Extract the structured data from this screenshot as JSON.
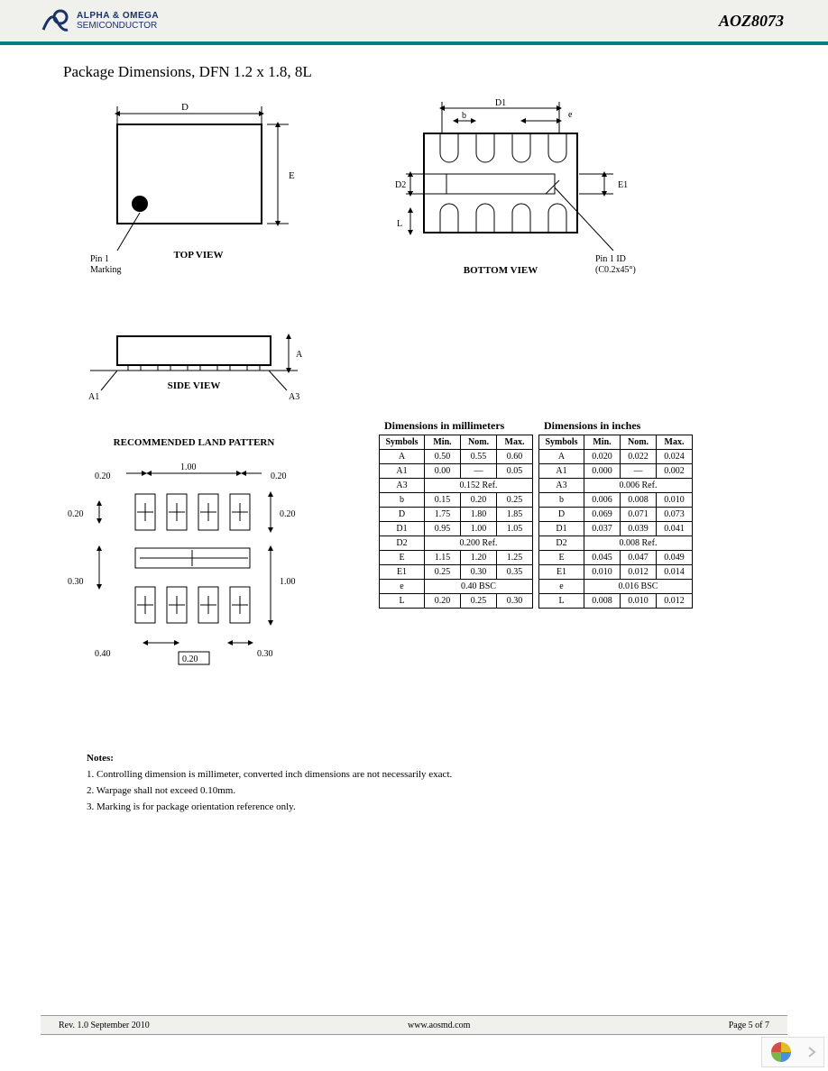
{
  "header": {
    "company_top": "ALPHA & OMEGA",
    "company_bottom": "SEMICONDUCTOR",
    "part_number": "AOZ8073"
  },
  "section_title": "Package Dimensions, DFN 1.2 x 1.8, 8L",
  "views": {
    "top": {
      "caption": "TOP VIEW",
      "pin1_label": "Pin 1\nMarking",
      "dim_D": "D",
      "dim_E": "E"
    },
    "bottom": {
      "caption": "BOTTOM VIEW",
      "dim_D1": "D1",
      "dim_b": "b",
      "dim_e": "e",
      "dim_D2": "D2",
      "dim_E1": "E1",
      "dim_L": "L",
      "pin1_label": "Pin 1 ID\n(C0.2x45°)"
    },
    "side": {
      "caption": "SIDE VIEW",
      "dim_A": "A",
      "dim_A1": "A1",
      "dim_A3": "A3"
    }
  },
  "land_pattern": {
    "title": "RECOMMENDED LAND PATTERN",
    "dims": {
      "top_0_20_l": "0.20",
      "top_1_00": "1.00",
      "top_0_20_r": "0.20",
      "left_0_20": "0.20",
      "right_0_20": "0.20",
      "left_0_30": "0.30",
      "right_1_00": "1.00",
      "bot_0_40": "0.40",
      "bot_0_20": "0.20",
      "bot_0_30": "0.30"
    }
  },
  "tables": {
    "mm": {
      "title": "Dimensions in millimeters",
      "headers": [
        "Symbols",
        "Min.",
        "Nom.",
        "Max."
      ],
      "rows": [
        {
          "sym": "A",
          "min": "0.50",
          "nom": "0.55",
          "max": "0.60"
        },
        {
          "sym": "A1",
          "min": "0.00",
          "nom": "—",
          "max": "0.05"
        },
        {
          "sym": "A3",
          "span": "0.152 Ref."
        },
        {
          "sym": "b",
          "min": "0.15",
          "nom": "0.20",
          "max": "0.25"
        },
        {
          "sym": "D",
          "min": "1.75",
          "nom": "1.80",
          "max": "1.85"
        },
        {
          "sym": "D1",
          "min": "0.95",
          "nom": "1.00",
          "max": "1.05"
        },
        {
          "sym": "D2",
          "span": "0.200 Ref."
        },
        {
          "sym": "E",
          "min": "1.15",
          "nom": "1.20",
          "max": "1.25"
        },
        {
          "sym": "E1",
          "min": "0.25",
          "nom": "0.30",
          "max": "0.35"
        },
        {
          "sym": "e",
          "span": "0.40 BSC"
        },
        {
          "sym": "L",
          "min": "0.20",
          "nom": "0.25",
          "max": "0.30"
        }
      ]
    },
    "in": {
      "title": "Dimensions in inches",
      "headers": [
        "Symbols",
        "Min.",
        "Nom.",
        "Max."
      ],
      "rows": [
        {
          "sym": "A",
          "min": "0.020",
          "nom": "0.022",
          "max": "0.024"
        },
        {
          "sym": "A1",
          "min": "0.000",
          "nom": "—",
          "max": "0.002"
        },
        {
          "sym": "A3",
          "span": "0.006 Ref."
        },
        {
          "sym": "b",
          "min": "0.006",
          "nom": "0.008",
          "max": "0.010"
        },
        {
          "sym": "D",
          "min": "0.069",
          "nom": "0.071",
          "max": "0.073"
        },
        {
          "sym": "D1",
          "min": "0.037",
          "nom": "0.039",
          "max": "0.041"
        },
        {
          "sym": "D2",
          "span": "0.008 Ref."
        },
        {
          "sym": "E",
          "min": "0.045",
          "nom": "0.047",
          "max": "0.049"
        },
        {
          "sym": "E1",
          "min": "0.010",
          "nom": "0.012",
          "max": "0.014"
        },
        {
          "sym": "e",
          "span": "0.016 BSC"
        },
        {
          "sym": "L",
          "min": "0.008",
          "nom": "0.010",
          "max": "0.012"
        }
      ]
    }
  },
  "notes": {
    "title": "Notes:",
    "items": [
      "1. Controlling dimension is millimeter, converted inch dimensions are not necessarily exact.",
      "2. Warpage shall not exceed 0.10mm.",
      "3. Marking is for package orientation reference only."
    ]
  },
  "footer": {
    "rev": "Rev. 1.0 September 2010",
    "url": "www.aosmd.com",
    "page": "Page 5 of 7"
  },
  "colors": {
    "header_bg": "#f0f0ec",
    "header_border": "#008080",
    "logo_blue": "#1a3366",
    "footer_bg": "#f0f0ec",
    "text": "#000000",
    "nav_yellow": "#dfc020",
    "nav_blue": "#4a90d9",
    "nav_green": "#7ab648",
    "nav_red": "#d94a4a"
  }
}
